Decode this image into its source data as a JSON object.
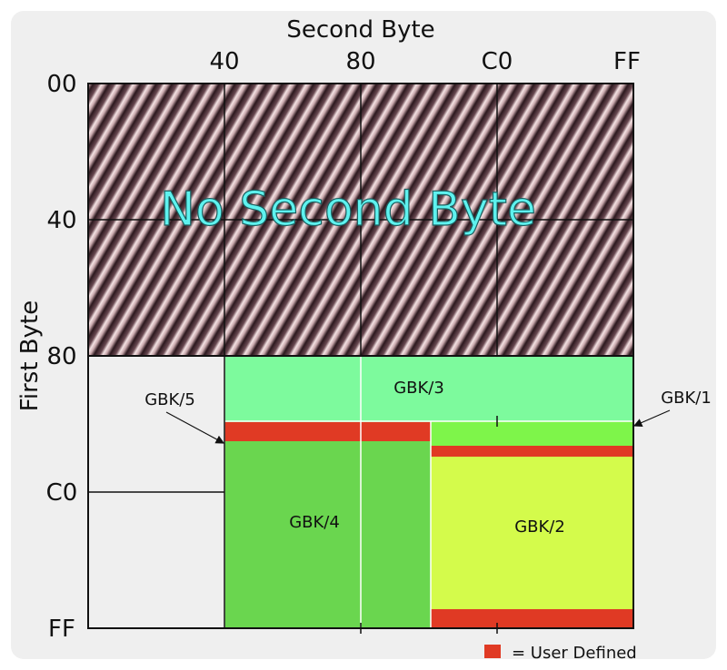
{
  "title_x": "Second Byte",
  "title_y": "First Byte",
  "x_ticks": [
    "40",
    "80",
    "C0",
    "FF"
  ],
  "y_ticks": [
    "00",
    "40",
    "80",
    "C0",
    "FF"
  ],
  "regions": {
    "no_second_byte": "No Second Byte",
    "gbk3": "GBK/3",
    "gbk4": "GBK/4",
    "gbk2": "GBK/2"
  },
  "callouts": {
    "gbk5": "GBK/5",
    "gbk1": "GBK/1"
  },
  "legend": {
    "label": "= User Defined",
    "color": "#e03a24"
  },
  "colors": {
    "background": "#efefef",
    "hatch_dark": "#3a2128",
    "hatch_light": "#f2dfe0",
    "gbk3": "#7dfa9d",
    "gbk4": "#6ad64f",
    "gbk2": "#d4fb4b",
    "gbk1_band": "#7ef54a",
    "user_defined": "#e03a24",
    "title_text": "#5ef2ef"
  }
}
